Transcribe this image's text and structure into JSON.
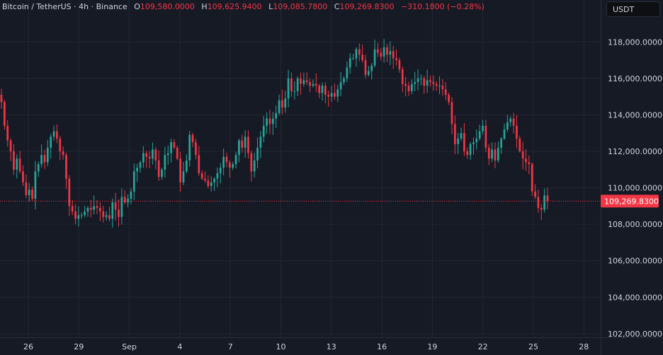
{
  "header": {
    "symbol": "Bitcoin / TetherUS",
    "interval": "4h",
    "exchange": "Binance",
    "open_label": "O",
    "open": "109,580.0000",
    "high_label": "H",
    "high": "109,625.9400",
    "low_label": "L",
    "low": "109,085.7800",
    "close_label": "C",
    "close": "109,269.8300",
    "change": "−310.1800 (−0.28%)"
  },
  "currency_button": {
    "label": "USDT"
  },
  "price_tag": {
    "label": "109,269.8300"
  },
  "colors": {
    "background": "#161a25",
    "grid": "#232732",
    "up": "#26a69a",
    "down": "#f23645",
    "text": "#d1d4dc"
  },
  "chart_data": {
    "type": "candlestick",
    "symbol": "Bitcoin / TetherUS",
    "interval": "4h",
    "exchange": "Binance",
    "y_ticks": [
      {
        "value": 102000,
        "label": "102,000.0000"
      },
      {
        "value": 104000,
        "label": "104,000.0000"
      },
      {
        "value": 106000,
        "label": "106,000.0000"
      },
      {
        "value": 108000,
        "label": "108,000.0000"
      },
      {
        "value": 110000,
        "label": "110,000.0000"
      },
      {
        "value": 112000,
        "label": "112,000.0000"
      },
      {
        "value": 114000,
        "label": "114,000.0000"
      },
      {
        "value": 116000,
        "label": "116,000.0000"
      },
      {
        "value": 118000,
        "label": "118,000.0000"
      }
    ],
    "ylim": [
      101800,
      120300
    ],
    "x_ticks": [
      "26",
      "29",
      "Sep",
      "4",
      "7",
      "10",
      "13",
      "16",
      "19",
      "22",
      "25",
      "28"
    ],
    "last_price": 109269.83,
    "closes": [
      114700,
      113400,
      112600,
      112000,
      111000,
      111600,
      110900,
      110300,
      109600,
      109900,
      109400,
      110900,
      111300,
      111800,
      111400,
      112200,
      112800,
      113100,
      112700,
      112000,
      111800,
      110500,
      109000,
      108700,
      108300,
      108500,
      108500,
      108700,
      108900,
      108800,
      109000,
      108900,
      108700,
      108400,
      108500,
      108300,
      109200,
      108800,
      108400,
      109500,
      109200,
      109400,
      109800,
      110900,
      111100,
      111400,
      111900,
      111700,
      111600,
      112100,
      111500,
      110600,
      111000,
      111800,
      111900,
      112500,
      112200,
      111600,
      110300,
      110900,
      111500,
      112900,
      112500,
      111800,
      110800,
      110500,
      110400,
      110100,
      110300,
      110500,
      110800,
      111100,
      111700,
      111400,
      111100,
      111300,
      111800,
      112600,
      112200,
      112800,
      111900,
      110900,
      111500,
      112200,
      112800,
      113400,
      113800,
      113500,
      113800,
      114100,
      114800,
      114400,
      114900,
      116000,
      115300,
      115300,
      116000,
      115700,
      115900,
      115800,
      115600,
      115700,
      115600,
      115200,
      115600,
      115100,
      115000,
      115200,
      115000,
      115400,
      115800,
      116000,
      116600,
      117100,
      117100,
      117600,
      117300,
      117000,
      116200,
      116400,
      116700,
      117600,
      117400,
      117200,
      117700,
      117300,
      117500,
      117100,
      117000,
      116500,
      115700,
      115600,
      115300,
      115700,
      115800,
      116000,
      116000,
      115600,
      115900,
      115800,
      115700,
      115600,
      115600,
      115400,
      115100,
      114700,
      113500,
      112400,
      112700,
      113000,
      112000,
      111800,
      112400,
      112500,
      112700,
      113100,
      113400,
      112200,
      111600,
      112100,
      111500,
      112200,
      112700,
      113200,
      113600,
      113800,
      113400,
      112700,
      112000,
      111600,
      111400,
      111300,
      109800,
      109500,
      108900,
      108800,
      109580,
      109270
    ]
  }
}
